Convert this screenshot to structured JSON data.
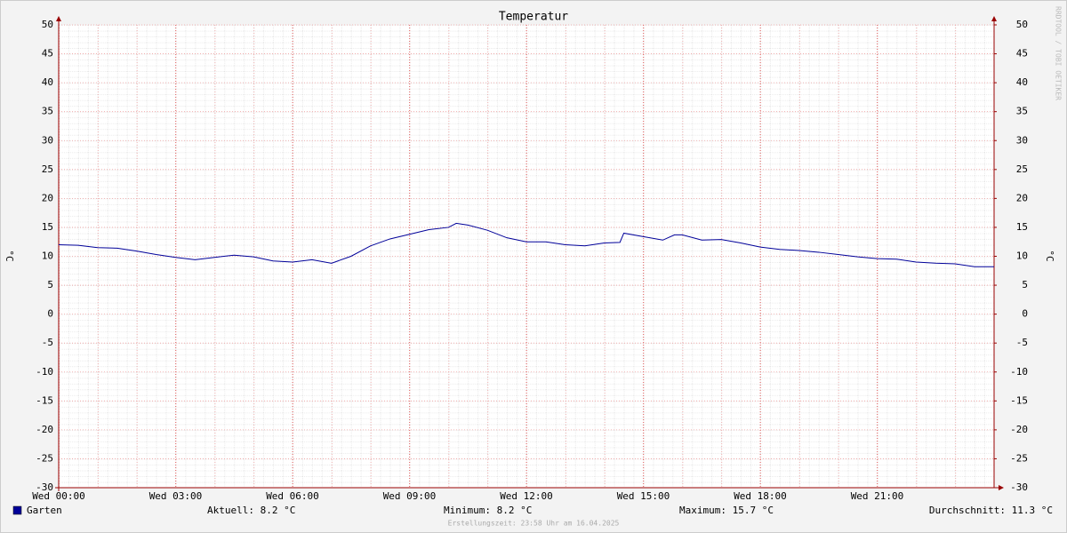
{
  "chart_data": {
    "type": "line",
    "title": "Temperatur",
    "y_label": "°C",
    "y2_label": "°C",
    "watermark": "RRDTOOL / TOBI OETIKER",
    "x": [
      0,
      0.5,
      1,
      1.5,
      2,
      2.5,
      3,
      3.5,
      4,
      4.5,
      5,
      5.5,
      6,
      6.5,
      7,
      7.5,
      8,
      8.5,
      9,
      9.5,
      10,
      10.2,
      10.5,
      11,
      11.5,
      12,
      12.5,
      13,
      13.5,
      14,
      14.4,
      14.5,
      15,
      15.5,
      15.8,
      16,
      16.5,
      17,
      17.5,
      18,
      18.5,
      19,
      19.5,
      20,
      20.5,
      21,
      21.5,
      22,
      22.5,
      23,
      23.5,
      24
    ],
    "series": [
      {
        "name": "Garten",
        "color": "#000099",
        "values": [
          12.0,
          11.9,
          11.5,
          11.4,
          10.9,
          10.3,
          9.8,
          9.4,
          9.8,
          10.2,
          9.9,
          9.2,
          9.0,
          9.4,
          8.8,
          10.0,
          11.8,
          13.0,
          13.8,
          14.6,
          15.0,
          15.7,
          15.4,
          14.5,
          13.2,
          12.5,
          12.5,
          12.0,
          11.8,
          12.3,
          12.4,
          14.0,
          13.4,
          12.8,
          13.7,
          13.7,
          12.8,
          12.9,
          12.3,
          11.6,
          11.2,
          11.0,
          10.7,
          10.3,
          9.9,
          9.6,
          9.5,
          9.0,
          8.8,
          8.7,
          8.2,
          8.2
        ]
      }
    ],
    "xlim": [
      0,
      24
    ],
    "xticks": [
      {
        "value": 0,
        "label": "Wed 00:00"
      },
      {
        "value": 3,
        "label": "Wed 03:00"
      },
      {
        "value": 6,
        "label": "Wed 06:00"
      },
      {
        "value": 9,
        "label": "Wed 09:00"
      },
      {
        "value": 12,
        "label": "Wed 12:00"
      },
      {
        "value": 15,
        "label": "Wed 15:00"
      },
      {
        "value": 18,
        "label": "Wed 18:00"
      },
      {
        "value": 21,
        "label": "Wed 21:00"
      }
    ],
    "ylim": [
      -30,
      50
    ],
    "yticks": [
      -30,
      -25,
      -20,
      -15,
      -10,
      -5,
      0,
      5,
      10,
      15,
      20,
      25,
      30,
      35,
      40,
      45,
      50
    ],
    "y2lim": [
      -30,
      50
    ],
    "y2ticks": [
      -30,
      -25,
      -20,
      -15,
      -10,
      -5,
      0,
      5,
      10,
      15,
      20,
      25,
      30,
      35,
      40,
      45,
      50
    ],
    "grid": true,
    "stats": [
      "Aktuell: 8.2 °C",
      "Minimum: 8.2 °C",
      "Maximum: 15.7 °C",
      "Durchschnitt: 11.3 °C"
    ],
    "footer": "Erstellungszeit: 23:58 Uhr am 16.04.2025"
  }
}
